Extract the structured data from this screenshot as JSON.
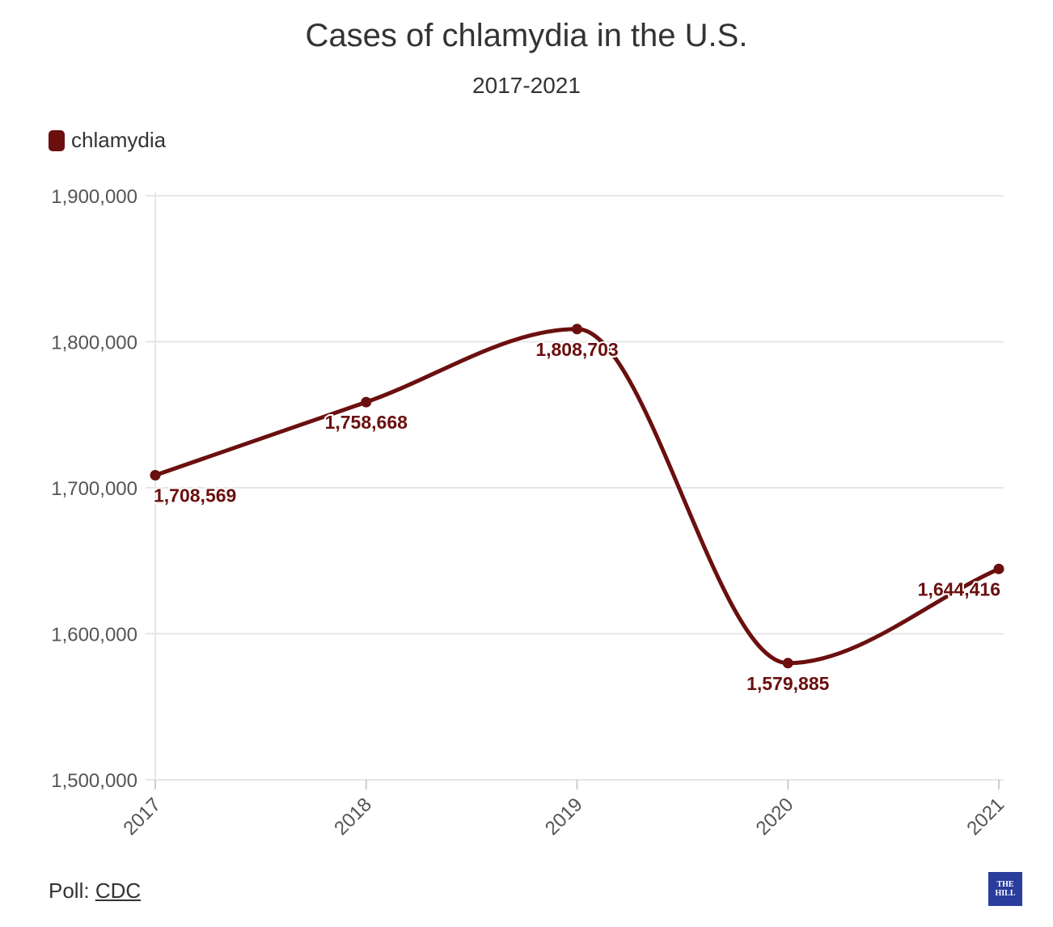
{
  "chart_data": {
    "type": "line",
    "title": "Cases of chlamydia in the U.S.",
    "subtitle": "2017-2021",
    "categories": [
      "2017",
      "2018",
      "2019",
      "2020",
      "2021"
    ],
    "series": [
      {
        "name": "chlamydia",
        "values": [
          1708569,
          1758668,
          1808703,
          1579885,
          1644416
        ],
        "labels": [
          "1,708,569",
          "1,758,668",
          "1,808,703",
          "1,579,885",
          "1,644,416"
        ],
        "color": "#6b0f0f"
      }
    ],
    "ylim": [
      1500000,
      1900000
    ],
    "yticks": [
      1500000,
      1600000,
      1700000,
      1800000,
      1900000
    ],
    "ytick_labels": [
      "1,500,000",
      "1,600,000",
      "1,700,000",
      "1,800,000",
      "1,900,000"
    ],
    "grid": true,
    "legend_position": "top-left",
    "xlabel": "",
    "ylabel": ""
  },
  "footer": {
    "source_prefix": "Poll: ",
    "source_link": "CDC"
  },
  "logo": {
    "line1": "THE",
    "line2": "HILL"
  }
}
